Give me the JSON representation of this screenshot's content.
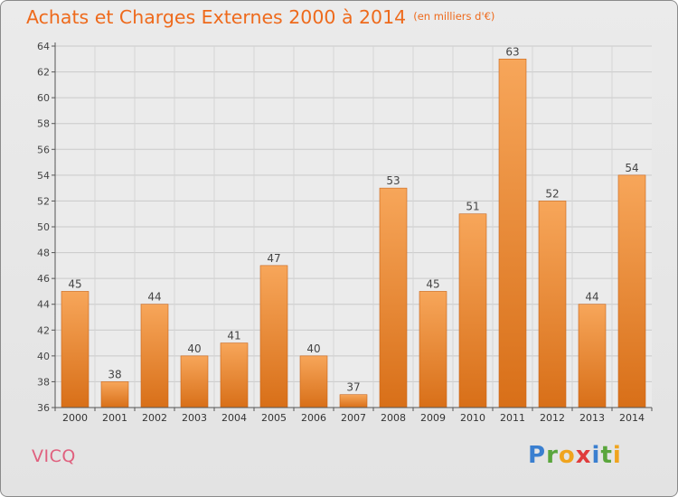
{
  "title": "Achats et Charges Externes 2000 à 2014",
  "unit": "(en milliers d'€)",
  "place": "VICQ",
  "logo": {
    "letters": [
      "P",
      "r",
      "o",
      "x",
      "i",
      "t",
      "i"
    ],
    "colors": [
      "#3a7fd0",
      "#5aa63c",
      "#f0a41e",
      "#e03c3c",
      "#3a7fd0",
      "#5aa63c",
      "#f0a41e"
    ]
  },
  "colors": {
    "title": "#ee6a1c",
    "bar_top": "#f7a65a",
    "bar_bottom": "#d86f18",
    "axis": "#555555",
    "place": "#e0607e"
  },
  "chart_data": {
    "type": "bar",
    "categories": [
      "2000",
      "2001",
      "2002",
      "2003",
      "2004",
      "2005",
      "2006",
      "2007",
      "2008",
      "2009",
      "2010",
      "2011",
      "2012",
      "2013",
      "2014"
    ],
    "values": [
      45,
      38,
      44,
      40,
      41,
      47,
      40,
      37,
      53,
      45,
      51,
      63,
      52,
      44,
      54
    ],
    "ylim": [
      36,
      64
    ],
    "yticks": [
      36,
      38,
      40,
      42,
      44,
      46,
      48,
      50,
      52,
      54,
      56,
      58,
      60,
      62,
      64
    ],
    "grid": true,
    "data_labels": true
  }
}
